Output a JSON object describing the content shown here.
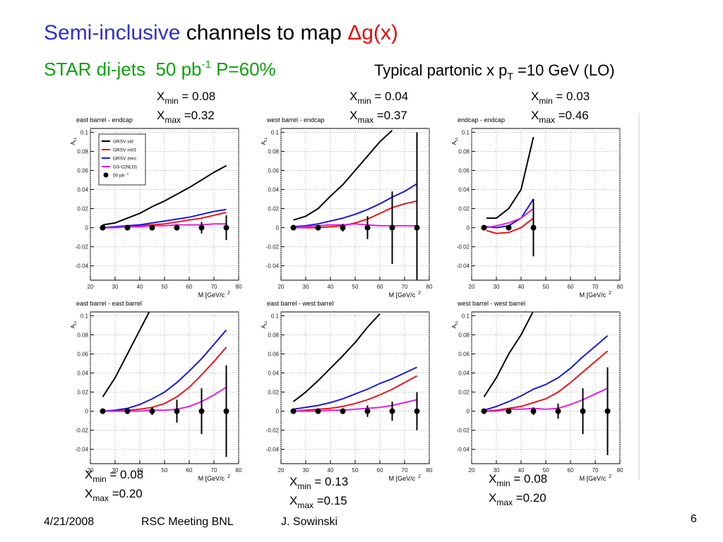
{
  "slide": {
    "title": [
      "Semi-inclusive",
      " channels to map ",
      "Δ",
      "g(x)"
    ],
    "subtitle": {
      "text": "STAR di-jets  50 pb",
      "sup": "-1",
      "rest": " P=60%"
    },
    "note": {
      "text": "Typical partonic x p",
      "sub": "T",
      "rest": " =10 GeV (LO)"
    },
    "footer": [
      "4/21/2008",
      "RSC Meeting BNL",
      "J. Sowinski",
      "6"
    ]
  },
  "chart_data": [
    {
      "type": "line",
      "title": "east barrel - endcap",
      "xlabel": "M [GeV/c",
      "xlabel_sup": "2",
      "ylabel": "A",
      "ylabel_sub": "LL",
      "xlim": [
        20,
        80
      ],
      "xticks": [
        20,
        30,
        40,
        50,
        60,
        70,
        80
      ],
      "ylim": [
        -0.055,
        0.104
      ],
      "yticks": [
        -0.04,
        -0.02,
        0,
        0.02,
        0.04,
        0.06,
        0.08,
        0.1
      ],
      "grid": true,
      "legend": "upper left",
      "annotation": [
        {
          "base": "X",
          "sub": "min",
          "text": " = 0.08"
        },
        {
          "base": "X",
          "sub": "max",
          "text": " =0.32"
        }
      ],
      "x": [
        25,
        30,
        35,
        40,
        45,
        50,
        55,
        60,
        65,
        70,
        75
      ],
      "series": [
        {
          "name": "GRSV std",
          "color": "#000000",
          "values": [
            0.003,
            0.005,
            0.01,
            0.015,
            0.022,
            0.028,
            0.035,
            0.042,
            0.05,
            0.058,
            0.065
          ]
        },
        {
          "name": "GRSV m03",
          "color": "#e8161b",
          "values": [
            0,
            0,
            0.001,
            0.002,
            0.003,
            0.004,
            0.006,
            0.008,
            0.01,
            0.013,
            0.016
          ]
        },
        {
          "name": "GRSV zero",
          "color": "#1a1ad8",
          "values": [
            0,
            0.001,
            0.002,
            0.003,
            0.005,
            0.007,
            0.009,
            0.011,
            0.014,
            0.017,
            0.019
          ]
        },
        {
          "name": "GS-C(NLO)",
          "color": "#e020e0",
          "values": [
            0,
            0,
            0.001,
            0.001,
            0.002,
            0.002,
            0.003,
            0.003,
            0.003,
            0.004,
            0.004
          ]
        }
      ],
      "points": {
        "name": "50 pb",
        "name_sup": "-1",
        "color": "#000000",
        "x": [
          25,
          35,
          45,
          55,
          65,
          75
        ],
        "values": [
          0,
          0,
          0,
          0,
          0,
          0
        ],
        "errors": [
          0.001,
          0.001,
          0.002,
          0.003,
          0.006,
          0.013
        ]
      }
    },
    {
      "type": "line",
      "title": "west barrel - endcap",
      "xlabel": "M [GeV/c",
      "xlabel_sup": "2",
      "ylabel": "A",
      "ylabel_sub": "LL",
      "xlim": [
        20,
        80
      ],
      "xticks": [
        20,
        30,
        40,
        50,
        60,
        70,
        80
      ],
      "ylim": [
        -0.055,
        0.104
      ],
      "yticks": [
        -0.04,
        -0.02,
        0,
        0.02,
        0.04,
        0.06,
        0.08,
        0.1
      ],
      "grid": true,
      "annotation": [
        {
          "base": "X",
          "sub": "min",
          "text": " = 0.04"
        },
        {
          "base": "X",
          "sub": "max",
          "text": " =0.37"
        }
      ],
      "x": [
        25,
        30,
        35,
        40,
        45,
        50,
        55,
        60,
        65,
        70,
        75
      ],
      "series": [
        {
          "name": "GRSV std",
          "color": "#000000",
          "values": [
            0.008,
            0.012,
            0.02,
            0.033,
            0.045,
            0.06,
            0.075,
            0.09,
            0.102,
            null,
            null
          ]
        },
        {
          "name": "GRSV m03",
          "color": "#e8161b",
          "values": [
            0,
            0,
            0,
            0.001,
            0.002,
            0.005,
            0.009,
            0.015,
            0.021,
            0.025,
            0.028
          ]
        },
        {
          "name": "GRSV zero",
          "color": "#1a1ad8",
          "values": [
            0.001,
            0.002,
            0.004,
            0.007,
            0.01,
            0.014,
            0.019,
            0.025,
            0.032,
            0.038,
            0.046
          ]
        },
        {
          "name": "GS-C(NLO)",
          "color": "#e020e0",
          "values": [
            0,
            0.001,
            0.002,
            0.003,
            0.003,
            0.004,
            0.003,
            0.002,
            0.002,
            0.002,
            0.002
          ]
        }
      ],
      "points": {
        "name": "50 pb",
        "name_sup": "-1",
        "color": "#000000",
        "x": [
          25,
          35,
          45,
          55,
          65,
          75
        ],
        "values": [
          0,
          0,
          0,
          0,
          0,
          0
        ],
        "errors": [
          0.001,
          0.002,
          0.004,
          0.012,
          0.038,
          0.1
        ]
      }
    },
    {
      "type": "line",
      "title": "endcap - endcap",
      "xlabel": "M [GeV/c",
      "xlabel_sup": "2",
      "ylabel": "A",
      "ylabel_sub": "LL",
      "xlim": [
        20,
        80
      ],
      "xticks": [
        20,
        30,
        40,
        50,
        60,
        70,
        80
      ],
      "ylim": [
        -0.055,
        0.104
      ],
      "yticks": [
        -0.04,
        -0.02,
        0,
        0.02,
        0.04,
        0.06,
        0.08,
        0.1
      ],
      "grid": true,
      "annotation": [
        {
          "base": "X",
          "sub": "min",
          "text": " = 0.03"
        },
        {
          "base": "X",
          "sub": "max",
          "text": " =0.46"
        }
      ],
      "x": [
        26,
        30,
        35,
        40,
        45
      ],
      "series": [
        {
          "name": "GRSV std",
          "color": "#000000",
          "values": [
            0.01,
            0.01,
            0.02,
            0.04,
            0.095
          ]
        },
        {
          "name": "GRSV m03",
          "color": "#e8161b",
          "values": [
            -0.003,
            -0.006,
            -0.005,
            0,
            0.01
          ]
        },
        {
          "name": "GRSV zero",
          "color": "#1a1ad8",
          "values": [
            0.001,
            0,
            0.002,
            0.01,
            0.03
          ]
        },
        {
          "name": "GS-C(NLO)",
          "color": "#e020e0",
          "values": [
            0,
            0.002,
            0.005,
            0.01,
            0.02
          ]
        }
      ],
      "points": {
        "name": "50 pb",
        "name_sup": "-1",
        "color": "#000000",
        "x": [
          25,
          35,
          45
        ],
        "values": [
          0,
          0,
          0
        ],
        "errors": [
          0.001,
          0.003,
          0.03
        ]
      }
    },
    {
      "type": "line",
      "title": "east barrel - east barrel",
      "xlabel": "M [GeV/c",
      "xlabel_sup": "2",
      "ylabel": "A",
      "ylabel_sub": "LL",
      "xlim": [
        20,
        80
      ],
      "xticks": [
        20,
        30,
        40,
        50,
        60,
        70,
        80
      ],
      "ylim": [
        -0.055,
        0.104
      ],
      "yticks": [
        -0.04,
        -0.02,
        0,
        0.02,
        0.04,
        0.06,
        0.08,
        0.1
      ],
      "grid": true,
      "annotation": [
        {
          "base": "X",
          "sub": "min",
          "text": " = 0.08"
        },
        {
          "base": "X",
          "sub": "max",
          "text": " =0.20"
        }
      ],
      "x": [
        25,
        30,
        35,
        40,
        45,
        50,
        55,
        60,
        65,
        70,
        75
      ],
      "series": [
        {
          "name": "GRSV std",
          "color": "#000000",
          "values": [
            0.015,
            0.035,
            0.06,
            0.085,
            0.11,
            null,
            null,
            null,
            null,
            null,
            null
          ]
        },
        {
          "name": "GRSV m03",
          "color": "#e8161b",
          "values": [
            0,
            0,
            0.001,
            0.002,
            0.004,
            0.008,
            0.015,
            0.025,
            0.038,
            0.052,
            0.067
          ]
        },
        {
          "name": "GRSV zero",
          "color": "#1a1ad8",
          "values": [
            0,
            0.001,
            0.003,
            0.007,
            0.013,
            0.02,
            0.03,
            0.042,
            0.055,
            0.07,
            0.085
          ]
        },
        {
          "name": "GS-C(NLO)",
          "color": "#e020e0",
          "values": [
            0,
            0,
            0,
            0,
            0.001,
            0.001,
            0.002,
            0.005,
            0.01,
            0.017,
            0.025
          ]
        }
      ],
      "points": {
        "name": "50 pb",
        "name_sup": "-1",
        "color": "#000000",
        "x": [
          25,
          35,
          45,
          55,
          65,
          75
        ],
        "values": [
          0,
          0,
          0,
          0,
          0,
          0
        ],
        "errors": [
          0.001,
          0.002,
          0.004,
          0.012,
          0.024,
          0.048
        ]
      }
    },
    {
      "type": "line",
      "title": "east barrel - west barrel",
      "xlabel": "M [GeV/c",
      "xlabel_sup": "2",
      "ylabel": "A",
      "ylabel_sub": "LL",
      "xlim": [
        20,
        80
      ],
      "xticks": [
        20,
        30,
        40,
        50,
        60,
        70,
        80
      ],
      "ylim": [
        -0.055,
        0.104
      ],
      "yticks": [
        -0.04,
        -0.02,
        0,
        0.02,
        0.04,
        0.06,
        0.08,
        0.1
      ],
      "grid": true,
      "annotation": [
        {
          "base": "X",
          "sub": "min",
          "text": " = 0.13"
        },
        {
          "base": "X",
          "sub": "max",
          "text": " =0.15"
        }
      ],
      "x": [
        25,
        30,
        35,
        40,
        45,
        50,
        55,
        60,
        65,
        70,
        75
      ],
      "series": [
        {
          "name": "GRSV std",
          "color": "#000000",
          "values": [
            0.01,
            0.02,
            0.032,
            0.045,
            0.058,
            0.072,
            0.088,
            0.102,
            null,
            null,
            null
          ]
        },
        {
          "name": "GRSV m03",
          "color": "#e8161b",
          "values": [
            0,
            0.001,
            0.002,
            0.003,
            0.005,
            0.008,
            0.012,
            0.017,
            0.023,
            0.03,
            0.037
          ]
        },
        {
          "name": "GRSV zero",
          "color": "#1a1ad8",
          "values": [
            0.002,
            0.004,
            0.006,
            0.009,
            0.013,
            0.018,
            0.023,
            0.029,
            0.034,
            0.04,
            0.046
          ]
        },
        {
          "name": "GS-C(NLO)",
          "color": "#e020e0",
          "values": [
            0,
            0,
            0,
            0.001,
            0.001,
            0.002,
            0.003,
            0.004,
            0.006,
            0.009,
            0.012
          ]
        }
      ],
      "points": {
        "name": "50 pb",
        "name_sup": "-1",
        "color": "#000000",
        "x": [
          25,
          35,
          45,
          55,
          65,
          75
        ],
        "values": [
          0,
          0,
          0,
          0,
          0,
          0
        ],
        "errors": [
          0.001,
          0.002,
          0.003,
          0.006,
          0.01,
          0.02
        ]
      }
    },
    {
      "type": "line",
      "title": "west barrel - west barrel",
      "xlabel": "M [GeV/c",
      "xlabel_sup": "2",
      "ylabel": "A",
      "ylabel_sub": "LL",
      "xlim": [
        20,
        80
      ],
      "xticks": [
        20,
        30,
        40,
        50,
        60,
        70,
        80
      ],
      "ylim": [
        -0.055,
        0.104
      ],
      "yticks": [
        -0.04,
        -0.02,
        0,
        0.02,
        0.04,
        0.06,
        0.08,
        0.1
      ],
      "grid": true,
      "annotation": [
        {
          "base": "X",
          "sub": "min",
          "text": " = 0.08"
        },
        {
          "base": "X",
          "sub": "max",
          "text": " =0.20"
        }
      ],
      "x": [
        25,
        30,
        35,
        40,
        45,
        50,
        55,
        60,
        65,
        70,
        75
      ],
      "series": [
        {
          "name": "GRSV std",
          "color": "#000000",
          "values": [
            0.015,
            0.035,
            0.06,
            0.08,
            0.105,
            null,
            null,
            null,
            null,
            null,
            null
          ]
        },
        {
          "name": "GRSV m03",
          "color": "#e8161b",
          "values": [
            0,
            0.001,
            0.003,
            0.005,
            0.009,
            0.013,
            0.02,
            0.03,
            0.041,
            0.052,
            0.063
          ]
        },
        {
          "name": "GRSV zero",
          "color": "#1a1ad8",
          "values": [
            0.001,
            0.005,
            0.01,
            0.016,
            0.023,
            0.028,
            0.035,
            0.045,
            0.057,
            0.068,
            0.079
          ]
        },
        {
          "name": "GS-C(NLO)",
          "color": "#e020e0",
          "values": [
            0,
            0,
            0.002,
            0.002,
            0.003,
            0.002,
            0.003,
            0.007,
            0.012,
            0.018,
            0.024
          ]
        }
      ],
      "points": {
        "name": "50 pb",
        "name_sup": "-1",
        "color": "#000000",
        "x": [
          25,
          35,
          45,
          55,
          65,
          75
        ],
        "values": [
          0,
          0,
          0,
          0,
          0,
          0
        ],
        "errors": [
          0.001,
          0.002,
          0.004,
          0.008,
          0.024,
          0.046
        ]
      }
    }
  ]
}
